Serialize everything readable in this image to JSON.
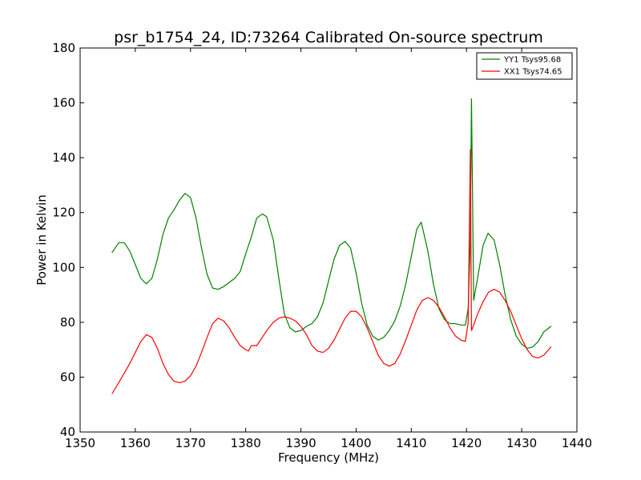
{
  "chart_data": {
    "type": "line",
    "title": "psr_b1754_24, ID:73264 Calibrated On-source spectrum",
    "xlabel": "Frequency (MHz)",
    "ylabel": "Power in Kelvin",
    "xlim": [
      1350,
      1440
    ],
    "ylim": [
      40,
      180
    ],
    "xticks": [
      1350,
      1360,
      1370,
      1380,
      1390,
      1400,
      1410,
      1420,
      1430,
      1440
    ],
    "yticks": [
      40,
      60,
      80,
      100,
      120,
      140,
      160,
      180
    ],
    "grid": false,
    "legend_position": "top-right",
    "series": [
      {
        "name": "YY1 Tsys95.68",
        "color": "#008000",
        "x": [
          1355.8,
          1357,
          1358,
          1359,
          1360,
          1361,
          1362,
          1363,
          1364,
          1365,
          1366,
          1367,
          1368,
          1369,
          1370,
          1371,
          1372,
          1373,
          1374,
          1375,
          1376,
          1377,
          1378,
          1379,
          1380,
          1381,
          1382,
          1383,
          1383.8,
          1385,
          1386,
          1387,
          1388,
          1389,
          1390,
          1391,
          1392,
          1393,
          1394,
          1395,
          1396,
          1397,
          1398,
          1399,
          1400,
          1401,
          1402,
          1403,
          1404,
          1405,
          1406,
          1407,
          1408,
          1409,
          1410,
          1411,
          1411.8,
          1413,
          1414,
          1415,
          1416,
          1417,
          1418,
          1419,
          1419.8,
          1420.3,
          1420.7,
          1420.9,
          1421.3,
          1422,
          1423,
          1423.9,
          1425,
          1426,
          1427,
          1428,
          1429,
          1430,
          1431,
          1432,
          1433,
          1434,
          1435.3
        ],
        "values": [
          105.5,
          109,
          109,
          106,
          101,
          96,
          94,
          96,
          103,
          112,
          118,
          121,
          124.5,
          127,
          125.5,
          118,
          107,
          97.5,
          92.5,
          92,
          93,
          94.5,
          96,
          98.5,
          105,
          111,
          118,
          119.5,
          118.5,
          110,
          96,
          83,
          78,
          76.5,
          77,
          78.5,
          79.5,
          82,
          87,
          95,
          103,
          108,
          109.5,
          107,
          98,
          87,
          79,
          75,
          73.5,
          74.5,
          77,
          80.5,
          86,
          94,
          104,
          114,
          116.5,
          106,
          94,
          85,
          81,
          79.5,
          79.5,
          79,
          79,
          85,
          110,
          161.5,
          88,
          96,
          108,
          112.5,
          110,
          101,
          90,
          81,
          75,
          72,
          70.5,
          71,
          73,
          76.5,
          78.5
        ]
      },
      {
        "name": "XX1 Tsys74.65",
        "color": "#ff0000",
        "x": [
          1355.8,
          1357,
          1358,
          1359,
          1360,
          1361,
          1362,
          1363,
          1364,
          1365,
          1366,
          1367,
          1368,
          1369,
          1370,
          1371,
          1372,
          1373,
          1374,
          1375,
          1376,
          1377,
          1378,
          1379,
          1380,
          1380.5,
          1381,
          1382,
          1383,
          1384,
          1385,
          1386,
          1387,
          1388,
          1389,
          1390,
          1391,
          1392,
          1393,
          1394,
          1395,
          1396,
          1397,
          1398,
          1399,
          1400,
          1401,
          1402,
          1403,
          1404,
          1405,
          1406,
          1407,
          1408,
          1409,
          1410,
          1411,
          1412,
          1413,
          1414,
          1415,
          1416,
          1417,
          1418,
          1419,
          1419.8,
          1420.3,
          1420.7,
          1420.9,
          1421.3,
          1422,
          1423,
          1424,
          1425,
          1426,
          1427,
          1428,
          1429,
          1430,
          1431,
          1432,
          1433,
          1434,
          1435.3
        ],
        "values": [
          54,
          58,
          61.5,
          65,
          69,
          73,
          75.5,
          74.5,
          70.5,
          65,
          61,
          58.5,
          58,
          58.5,
          60.5,
          64,
          69,
          74.5,
          79.5,
          81.5,
          80.5,
          78,
          74.5,
          71.5,
          70,
          69.5,
          71.5,
          71.5,
          74.5,
          77.5,
          80,
          81.5,
          82,
          81.5,
          80.5,
          78.5,
          75.5,
          71.5,
          69.5,
          69,
          70.5,
          73.5,
          77.5,
          81.5,
          84,
          84,
          82,
          78,
          73,
          68,
          65,
          64,
          65,
          68.5,
          73.5,
          79,
          84.5,
          88,
          89,
          88,
          85.5,
          82,
          78,
          75,
          73.5,
          73,
          80,
          143,
          77,
          79,
          83,
          87.5,
          91,
          92,
          91,
          88,
          84,
          79,
          74,
          70,
          67.5,
          67,
          68,
          71
        ]
      }
    ]
  }
}
